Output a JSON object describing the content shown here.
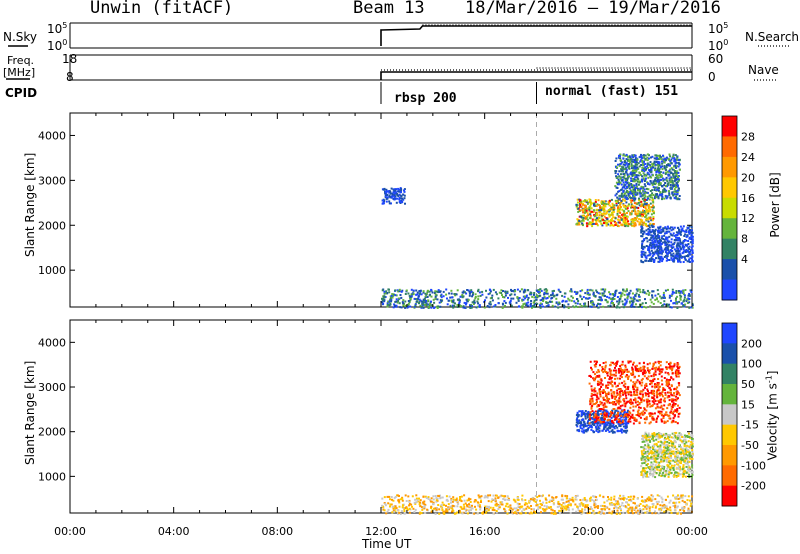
{
  "header": {
    "station": "Unwin (fitACF)",
    "beam": "Beam 13",
    "date_range": "18/Mar/2016 – 19/Mar/2016"
  },
  "status_panels": {
    "nsky_label": "N.Sky",
    "nsearch_label": "N.Search",
    "nsky_ticks": [
      "10^5",
      "10^0"
    ],
    "nsearch_ticks": [
      "10^5",
      "10^0"
    ],
    "freq_label_line1": "Freq.",
    "freq_label_line2": "[MHz]",
    "freq_ticks": [
      "18",
      "8"
    ],
    "nave_label": "Nave",
    "nave_ticks": [
      "60",
      "0"
    ],
    "cpid_label": "CPID",
    "cpid_events": [
      {
        "time_h": 12.0,
        "label": "rbsp 200"
      },
      {
        "time_h": 18.0,
        "label": "normal (fast) 151"
      }
    ]
  },
  "chart_data": [
    {
      "type": "heatmap",
      "title": "",
      "xlabel": "",
      "ylabel": "Slant Range [km]",
      "xlim": [
        0,
        24
      ],
      "ylim": [
        180,
        4500
      ],
      "yticks": [
        1000,
        2000,
        3000,
        4000
      ],
      "colorbar_label": "Power [dB]",
      "colorbar_ticks": [
        "28",
        "24",
        "20",
        "16",
        "12",
        "8",
        "4"
      ],
      "colorbar_colors": [
        "#ff0000",
        "#ff6a00",
        "#ff9900",
        "#ffc800",
        "#c8dc00",
        "#64b43c",
        "#328264",
        "#1a50aa",
        "#1f46ff"
      ],
      "data_start_time_h": 12.0,
      "regions": [
        {
          "x": [
            12.0,
            24.0
          ],
          "y": [
            180,
            600
          ],
          "level": "low-mid"
        },
        {
          "x": [
            12.0,
            12.9
          ],
          "y": [
            2500,
            2850
          ],
          "level": "low"
        },
        {
          "x": [
            19.5,
            22.5
          ],
          "y": [
            2000,
            2600
          ],
          "level": "high"
        },
        {
          "x": [
            21.0,
            23.5
          ],
          "y": [
            2600,
            3600
          ],
          "level": "low-mid"
        },
        {
          "x": [
            22.0,
            24.0
          ],
          "y": [
            1200,
            2000
          ],
          "level": "low"
        }
      ]
    },
    {
      "type": "heatmap",
      "title": "",
      "xlabel": "Time UT",
      "ylabel": "Slant Range [km]",
      "xlim": [
        0,
        24
      ],
      "ylim": [
        180,
        4500
      ],
      "yticks": [
        1000,
        2000,
        3000,
        4000
      ],
      "xticks": [
        "00:00",
        "04:00",
        "08:00",
        "12:00",
        "16:00",
        "20:00",
        "00:00"
      ],
      "colorbar_label": "Velocity [m s^-1]",
      "colorbar_ticks": [
        "200",
        "100",
        "50",
        "15",
        "-15",
        "-50",
        "-100",
        "-200"
      ],
      "colorbar_colors": [
        "#1f46ff",
        "#1a50aa",
        "#328264",
        "#64b43c",
        "#c8c8c8",
        "#ffc800",
        "#ff9900",
        "#ff6a00",
        "#ff0000"
      ],
      "data_start_time_h": 12.0,
      "regions": [
        {
          "x": [
            12.0,
            24.0
          ],
          "y": [
            180,
            600
          ],
          "level": "-15 to -50"
        },
        {
          "x": [
            19.5,
            21.5
          ],
          "y": [
            2000,
            2500
          ],
          "level": "200"
        },
        {
          "x": [
            20.0,
            23.5
          ],
          "y": [
            2200,
            3600
          ],
          "level": "-200"
        },
        {
          "x": [
            22.0,
            24.0
          ],
          "y": [
            1000,
            2000
          ],
          "level": "15 to -15"
        }
      ]
    }
  ]
}
